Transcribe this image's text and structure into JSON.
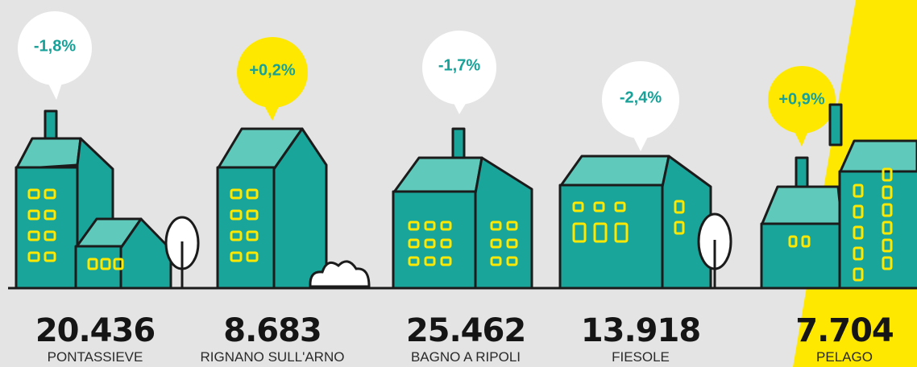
{
  "towns": [
    {
      "change": "-1,8%",
      "population": "20.436",
      "name": "PONTASSIEVE"
    },
    {
      "change": "+0,2%",
      "population": "8.683",
      "name": "RIGNANO SULL'ARNO"
    },
    {
      "change": "-1,7%",
      "population": "25.462",
      "name": "BAGNO A RIPOLI"
    },
    {
      "change": "-2,4%",
      "population": "13.918",
      "name": "FIESOLE"
    },
    {
      "change": "+0,9%",
      "population": "7.704",
      "name": "PELAGO"
    }
  ]
}
